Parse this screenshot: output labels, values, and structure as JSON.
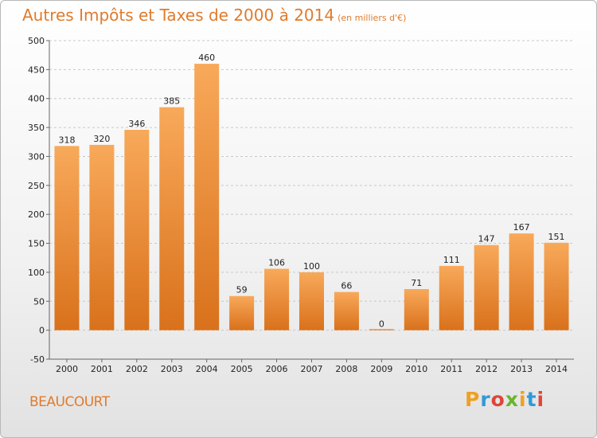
{
  "title": "Autres Impôts et Taxes de 2000 à 2014",
  "unit": "(en milliers d'€)",
  "town": "BEAUCOURT",
  "logo": [
    "P",
    "r",
    "o",
    "x",
    "i",
    "t",
    "i"
  ],
  "logo_colors": [
    "#f0a020",
    "#2f9ad8",
    "#e0453a",
    "#6ab42d",
    "#f0a020",
    "#2f9ad8",
    "#e0453a"
  ],
  "colors": {
    "bar_top": "#f8a95a",
    "bar_bottom": "#d9711b",
    "grid": "#c8c8c8",
    "title": "#e07b2c"
  },
  "chart_data": {
    "type": "bar",
    "categories": [
      "2000",
      "2001",
      "2002",
      "2003",
      "2004",
      "2005",
      "2006",
      "2007",
      "2008",
      "2009",
      "2010",
      "2011",
      "2012",
      "2013",
      "2014"
    ],
    "values": [
      318,
      320,
      346,
      385,
      460,
      59,
      106,
      100,
      66,
      0,
      71,
      111,
      147,
      167,
      151
    ],
    "yticks": [
      -50,
      0,
      50,
      100,
      150,
      200,
      250,
      300,
      350,
      400,
      450,
      500
    ],
    "ylim": [
      -50,
      500
    ],
    "grid": true
  }
}
